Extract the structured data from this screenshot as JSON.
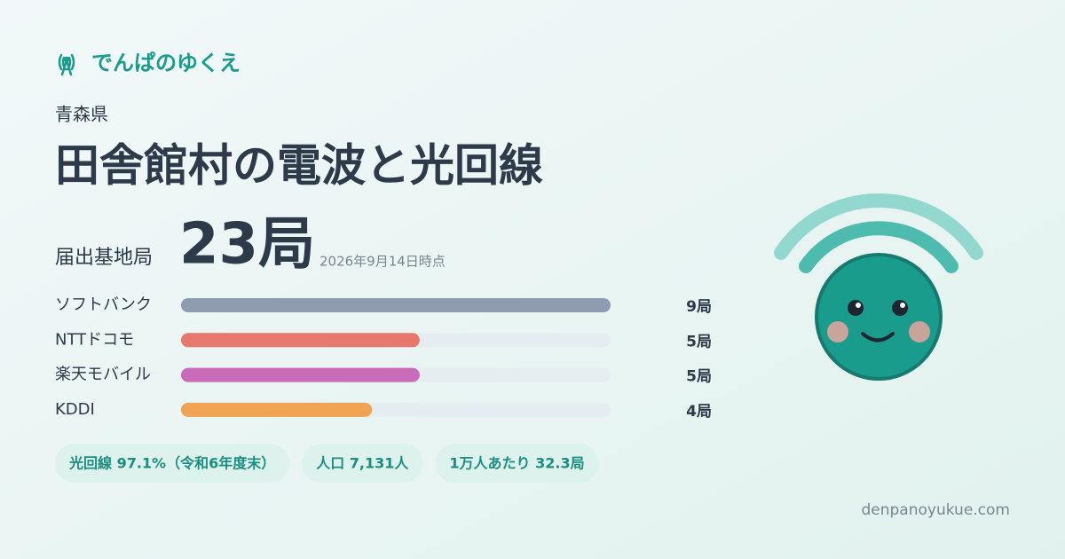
{
  "brand": "でんぱのゆくえ",
  "prefecture": "青森県",
  "title": "田舎館村の電波と光回線",
  "station_label": "届出基地局",
  "station_count": "23局",
  "as_of": "2026年9月14日時点",
  "chart_data": {
    "type": "bar",
    "orientation": "horizontal",
    "categories": [
      "ソフトバンク",
      "NTTドコモ",
      "楽天モバイル",
      "KDDI"
    ],
    "values": [
      9,
      5,
      5,
      4
    ],
    "value_labels": [
      "9局",
      "5局",
      "5局",
      "4局"
    ],
    "colors": [
      "#8e9bb0",
      "#e8786e",
      "#c96bb8",
      "#f0a352"
    ],
    "xlim": [
      0,
      9
    ]
  },
  "chips": [
    "光回線 97.1%（令和6年度末）",
    "人口 7,131人",
    "1万人あたり 32.3局"
  ],
  "footer": "denpanoyukue.com"
}
